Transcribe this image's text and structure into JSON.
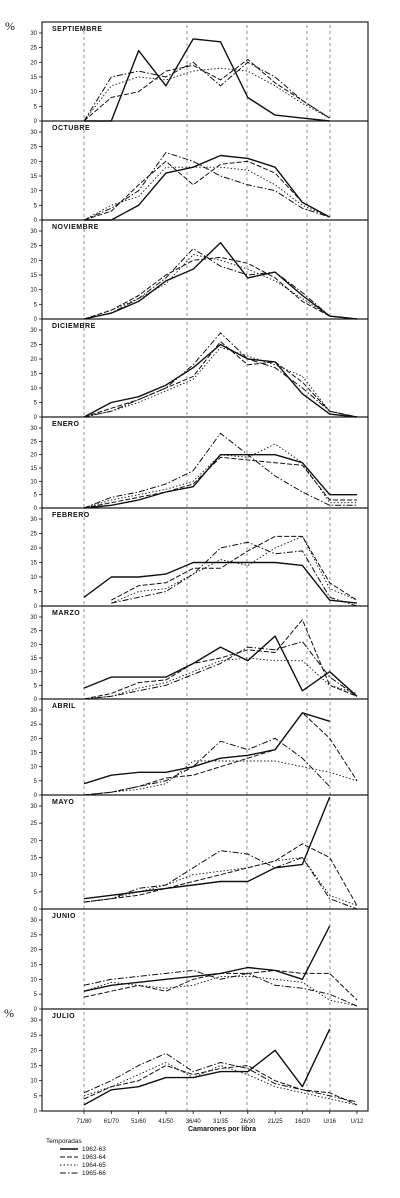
{
  "chart_data": {
    "type": "line",
    "ylabel": "%",
    "xlabel": "Camarones por libra",
    "categories": [
      "71/80",
      "61/70",
      "51/60",
      "41/50",
      "36/40",
      "31/35",
      "26/30",
      "21/25",
      "16/20",
      "U/16",
      "U/12"
    ],
    "ylim": [
      0,
      30
    ],
    "yticks": [
      0,
      5,
      10,
      15,
      20,
      25,
      30
    ],
    "legend": {
      "title": "Temporadas",
      "placement": "bottom-left",
      "entries": [
        "1962-63",
        "1963-64",
        "1964-65",
        "1965-66"
      ]
    },
    "panels": [
      {
        "month": "SEPTIEMBRE",
        "series": [
          {
            "name": "1962-63",
            "values": [
              0,
              0,
              24,
              12,
              28,
              27,
              8,
              2,
              1,
              0,
              null
            ]
          },
          {
            "name": "1963-64",
            "values": [
              0,
              8,
              10,
              17,
              19,
              14,
              21,
              13,
              7,
              1,
              null
            ]
          },
          {
            "name": "1964-65",
            "values": [
              0,
              12,
              15,
              14,
              17,
              18,
              17,
              12,
              6,
              1,
              null
            ]
          },
          {
            "name": "1965-66",
            "values": [
              0,
              15,
              17,
              15,
              20,
              12,
              20,
              15,
              7,
              1,
              null
            ]
          }
        ]
      },
      {
        "month": "OCTUBRE",
        "series": [
          {
            "name": "1962-63",
            "values": [
              0,
              0,
              5,
              16,
              18,
              22,
              21,
              18,
              6,
              1,
              null
            ]
          },
          {
            "name": "1963-64",
            "values": [
              0,
              3,
              12,
              20,
              12,
              19,
              20,
              16,
              6,
              1,
              null
            ]
          },
          {
            "name": "1964-65",
            "values": [
              0,
              5,
              8,
              18,
              18,
              18,
              17,
              12,
              5,
              1,
              null
            ]
          },
          {
            "name": "1965-66",
            "values": [
              0,
              4,
              10,
              23,
              20,
              15,
              12,
              10,
              4,
              1,
              null
            ]
          }
        ]
      },
      {
        "month": "NOVIEMBRE",
        "series": [
          {
            "name": "1962-63",
            "values": [
              0,
              2,
              6,
              13,
              17,
              26,
              14,
              16,
              8,
              1,
              0
            ]
          },
          {
            "name": "1963-64",
            "values": [
              0,
              3,
              8,
              15,
              20,
              21,
              19,
              14,
              6,
              1,
              0
            ]
          },
          {
            "name": "1964-65",
            "values": [
              0,
              3,
              7,
              12,
              22,
              20,
              17,
              13,
              7,
              1,
              0
            ]
          },
          {
            "name": "1965-66",
            "values": [
              0,
              2,
              7,
              14,
              24,
              18,
              15,
              16,
              9,
              1,
              0
            ]
          }
        ]
      },
      {
        "month": "DICIEMBRE",
        "series": [
          {
            "name": "1962-63",
            "values": [
              0,
              5,
              7,
              11,
              17,
              25,
              20,
              19,
              8,
              1,
              0
            ]
          },
          {
            "name": "1963-64",
            "values": [
              0,
              3,
              6,
              10,
              14,
              26,
              18,
              19,
              12,
              2,
              0
            ]
          },
          {
            "name": "1964-65",
            "values": [
              0,
              2,
              5,
              9,
              13,
              24,
              21,
              18,
              14,
              2,
              0
            ]
          },
          {
            "name": "1965-66",
            "values": [
              0,
              2,
              6,
              10,
              18,
              29,
              20,
              17,
              10,
              2,
              0
            ]
          }
        ]
      },
      {
        "month": "ENERO",
        "series": [
          {
            "name": "1962-63",
            "values": [
              0,
              1,
              3,
              6,
              8,
              20,
              20,
              20,
              17,
              5,
              5
            ]
          },
          {
            "name": "1963-64",
            "values": [
              0,
              2,
              4,
              6,
              9,
              19,
              18,
              17,
              16,
              3,
              3
            ]
          },
          {
            "name": "1964-65",
            "values": [
              0,
              3,
              5,
              7,
              10,
              20,
              19,
              24,
              17,
              2,
              2
            ]
          },
          {
            "name": "1965-66",
            "values": [
              0,
              4,
              6,
              9,
              14,
              28,
              20,
              12,
              6,
              1,
              1
            ]
          }
        ]
      },
      {
        "month": "FEBRERO",
        "series": [
          {
            "name": "1962-63",
            "values": [
              3,
              10,
              10,
              11,
              15,
              15,
              15,
              15,
              14,
              2,
              1
            ]
          },
          {
            "name": "1963-64",
            "values": [
              null,
              2,
              7,
              8,
              13,
              13,
              19,
              24,
              24,
              8,
              2
            ]
          },
          {
            "name": "1964-65",
            "values": [
              null,
              1,
              5,
              6,
              11,
              16,
              14,
              20,
              24,
              6,
              2
            ]
          },
          {
            "name": "1965-66",
            "values": [
              null,
              1,
              3,
              5,
              11,
              20,
              22,
              18,
              19,
              3,
              0
            ]
          }
        ]
      },
      {
        "month": "MARZO",
        "series": [
          {
            "name": "1962-63",
            "values": [
              4,
              8,
              8,
              8,
              13,
              19,
              14,
              23,
              3,
              10,
              1
            ]
          },
          {
            "name": "1963-64",
            "values": [
              0,
              2,
              6,
              7,
              13,
              15,
              18,
              17,
              29,
              5,
              1
            ]
          },
          {
            "name": "1964-65",
            "values": [
              0,
              1,
              4,
              6,
              10,
              14,
              15,
              14,
              14,
              5,
              2
            ]
          },
          {
            "name": "1965-66",
            "values": [
              0,
              1,
              3,
              5,
              9,
              13,
              19,
              18,
              21,
              8,
              1
            ]
          }
        ]
      },
      {
        "month": "ABRIL",
        "series": [
          {
            "name": "1962-63",
            "values": [
              4,
              7,
              8,
              8,
              10,
              13,
              14,
              16,
              29,
              26,
              null
            ]
          },
          {
            "name": "1963-64",
            "values": [
              0,
              1,
              3,
              6,
              7,
              10,
              13,
              16,
              29,
              20,
              5
            ]
          },
          {
            "name": "1964-65",
            "values": [
              0,
              1,
              2,
              4,
              12,
              12,
              12,
              12,
              10,
              8,
              5
            ]
          },
          {
            "name": "1965-66",
            "values": [
              0,
              1,
              3,
              5,
              10,
              19,
              16,
              20,
              13,
              3,
              null
            ]
          }
        ]
      },
      {
        "month": "MAYO",
        "series": [
          {
            "name": "1962-63",
            "values": [
              3,
              4,
              5,
              6,
              7,
              8,
              8,
              12,
              13,
              36,
              null
            ]
          },
          {
            "name": "1963-64",
            "values": [
              2,
              3,
              4,
              6,
              8,
              10,
              12,
              14,
              19,
              15,
              1
            ]
          },
          {
            "name": "1964-65",
            "values": [
              2,
              3,
              5,
              7,
              10,
              11,
              12,
              14,
              15,
              4,
              1
            ]
          },
          {
            "name": "1965-66",
            "values": [
              2,
              3,
              6,
              7,
              12,
              17,
              16,
              12,
              15,
              3,
              0
            ]
          }
        ]
      },
      {
        "month": "JUNIO",
        "series": [
          {
            "name": "1962-63",
            "values": [
              6,
              8,
              9,
              10,
              11,
              12,
              14,
              13,
              10,
              28,
              null
            ]
          },
          {
            "name": "1963-64",
            "values": [
              4,
              6,
              8,
              6,
              10,
              12,
              12,
              13,
              12,
              12,
              3
            ]
          },
          {
            "name": "1964-65",
            "values": [
              6,
              9,
              8,
              7,
              8,
              11,
              11,
              10,
              9,
              3,
              1
            ]
          },
          {
            "name": "1965-66",
            "values": [
              8,
              10,
              11,
              12,
              13,
              10,
              12,
              8,
              7,
              5,
              1
            ]
          }
        ]
      },
      {
        "month": "JULIO",
        "series": [
          {
            "name": "1962-63",
            "values": [
              2,
              7,
              8,
              11,
              11,
              13,
              13,
              20,
              8,
              27,
              null
            ]
          },
          {
            "name": "1963-64",
            "values": [
              4,
              8,
              10,
              15,
              12,
              14,
              15,
              10,
              7,
              6,
              2
            ]
          },
          {
            "name": "1964-65",
            "values": [
              5,
              8,
              12,
              16,
              11,
              15,
              12,
              8,
              6,
              4,
              2
            ]
          },
          {
            "name": "1965-66",
            "values": [
              6,
              10,
              15,
              19,
              13,
              16,
              14,
              9,
              7,
              5,
              3
            ]
          }
        ]
      }
    ]
  }
}
